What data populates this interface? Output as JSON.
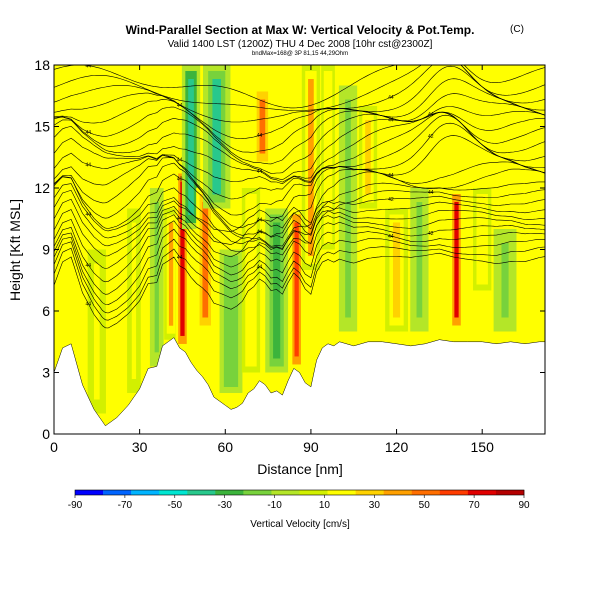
{
  "chart_data": {
    "type": "heatmap",
    "title": "Wind-Parallel Section at Max W: Vertical Velocity & Pot.Temp.",
    "title_badge": "(C)",
    "subtitle": "Valid 1400 LST (1200Z) THU 4 Dec 2008 [10hr cst@2300Z]",
    "subnote": "bndMax=168@ 3P 81,15 44,29Ohm",
    "xlabel": "Distance [nm]",
    "ylabel": "Height [Kft MSL]",
    "xlim": [
      0,
      172
    ],
    "ylim": [
      0,
      18
    ],
    "xticks": [
      0,
      30,
      60,
      90,
      120,
      150
    ],
    "yticks": [
      0,
      3,
      6,
      9,
      12,
      15,
      18
    ],
    "colorbar": {
      "label": "Vertical Velocity [cm/s]",
      "ticks": [
        -90,
        -70,
        -50,
        -30,
        -10,
        10,
        30,
        50,
        70,
        90
      ],
      "colors": [
        "#0000ff",
        "#0064ff",
        "#00b4ff",
        "#00e6d2",
        "#28c88c",
        "#3cb43c",
        "#78d23c",
        "#b4e628",
        "#d2f000",
        "#ffff00",
        "#ffd200",
        "#ffa000",
        "#ff6e00",
        "#ff3c00",
        "#e10000",
        "#b40000"
      ]
    },
    "terrain_profile": {
      "x": [
        0,
        3,
        6,
        10,
        14,
        18,
        22,
        26,
        30,
        33,
        36,
        38,
        40,
        42,
        44,
        46,
        48,
        50,
        52,
        54,
        56,
        58,
        60,
        62,
        64,
        66,
        68,
        70,
        72,
        74,
        76,
        78,
        80,
        82,
        84,
        86,
        88,
        90,
        92,
        94,
        96,
        98,
        100,
        105,
        110,
        115,
        120,
        125,
        130,
        135,
        140,
        145,
        150,
        155,
        160,
        165,
        170,
        172
      ],
      "height": [
        3.0,
        4.2,
        4.4,
        2.4,
        1.2,
        0.4,
        0.8,
        1.4,
        2.2,
        3.2,
        3.3,
        4.3,
        4.5,
        4.7,
        4.2,
        4.0,
        3.5,
        3.1,
        2.8,
        2.4,
        1.8,
        1.6,
        1.4,
        1.2,
        1.3,
        1.5,
        2.0,
        2.2,
        2.6,
        2.4,
        2.0,
        2.1,
        1.9,
        2.6,
        3.2,
        3.0,
        2.5,
        2.3,
        3.6,
        4.2,
        4.4,
        4.3,
        4.5,
        4.3,
        4.5,
        4.5,
        4.4,
        4.3,
        4.4,
        4.6,
        4.5,
        4.5,
        4.5,
        4.4,
        4.5,
        4.4,
        4.5,
        4.5
      ]
    },
    "velocity_bands": [
      {
        "x": 15,
        "w": 4,
        "z0": 0,
        "z1": 9,
        "w_cms": 18
      },
      {
        "x": 28,
        "w": 3,
        "z0": 2,
        "z1": 11,
        "w_cms": 14
      },
      {
        "x": 36,
        "w": 3,
        "z0": 3,
        "z1": 12,
        "w_cms": -14
      },
      {
        "x": 41,
        "w": 3,
        "z0": 3,
        "z1": 11,
        "w_cms": 35
      },
      {
        "x": 45,
        "w": 3,
        "z0": 4,
        "z1": 13,
        "w_cms": 78
      },
      {
        "x": 48,
        "w": 4,
        "z0": 10,
        "z1": 18,
        "w_cms": -45
      },
      {
        "x": 53,
        "w": 4,
        "z0": 5,
        "z1": 12,
        "w_cms": 48
      },
      {
        "x": 57,
        "w": 6,
        "z0": 11,
        "z1": 18,
        "w_cms": -38
      },
      {
        "x": 62,
        "w": 5,
        "z0": 2,
        "z1": 9,
        "w_cms": -22
      },
      {
        "x": 69,
        "w": 4,
        "z0": 3,
        "z1": 12,
        "w_cms": 22
      },
      {
        "x": 73,
        "w": 4,
        "z0": 13,
        "z1": 17,
        "w_cms": 55
      },
      {
        "x": 78,
        "w": 5,
        "z0": 3,
        "z1": 11,
        "w_cms": -24
      },
      {
        "x": 85,
        "w": 3,
        "z0": 3,
        "z1": 11,
        "w_cms": 62
      },
      {
        "x": 90,
        "w": 4,
        "z0": 8,
        "z1": 18,
        "w_cms": 35
      },
      {
        "x": 96,
        "w": 3,
        "z0": 9,
        "z1": 18,
        "w_cms": 22
      },
      {
        "x": 103,
        "w": 4,
        "z0": 5,
        "z1": 17,
        "w_cms": -12
      },
      {
        "x": 110,
        "w": 4,
        "z0": 11,
        "z1": 16,
        "w_cms": 28
      },
      {
        "x": 120,
        "w": 5,
        "z0": 5,
        "z1": 11,
        "w_cms": 30
      },
      {
        "x": 128,
        "w": 4,
        "z0": 5,
        "z1": 12,
        "w_cms": -14
      },
      {
        "x": 141,
        "w": 3,
        "z0": 5,
        "z1": 12,
        "w_cms": 72
      },
      {
        "x": 150,
        "w": 4,
        "z0": 7,
        "z1": 12,
        "w_cms": 22
      },
      {
        "x": 158,
        "w": 5,
        "z0": 5,
        "z1": 10,
        "w_cms": -14
      }
    ],
    "theta_contour_base": [
      5.0,
      5.5,
      6.0,
      6.5,
      7.0,
      7.5,
      8.0,
      8.5,
      9.0,
      9.5,
      10.0,
      10.5,
      11.0,
      11.5,
      12.0,
      12.5,
      13.0,
      13.5,
      14.0,
      14.5,
      15.0,
      15.5,
      16.0,
      16.5,
      17.0,
      17.5
    ],
    "theta_contour_labels": [
      "44",
      "44",
      "44",
      "44",
      "42",
      "44",
      "44",
      "44",
      "42",
      "44",
      "44",
      "40",
      "44",
      "44",
      "42",
      "44",
      "44",
      "44",
      "44",
      "44",
      "44",
      "44",
      "44",
      "44",
      "44",
      "44",
      "44",
      "44",
      "44"
    ],
    "background_w_cms": 12
  }
}
